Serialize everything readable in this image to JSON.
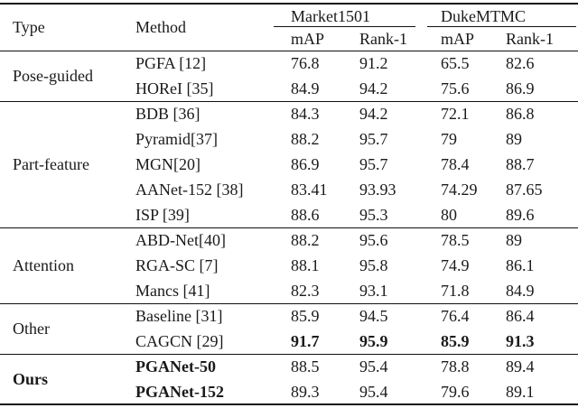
{
  "table": {
    "columns": {
      "type": "Type",
      "method": "Method"
    },
    "groups": [
      {
        "label": "Market1501",
        "sub": [
          "mAP",
          "Rank-1"
        ]
      },
      {
        "label": "DukeMTMC",
        "sub": [
          "mAP",
          "Rank-1"
        ]
      }
    ],
    "sections": [
      {
        "type": "Pose-guided",
        "bold": false,
        "rows": [
          {
            "method": "PGFA [12]",
            "values": [
              "76.8",
              "91.2",
              "65.5",
              "82.6"
            ]
          },
          {
            "method": "HOReI [35]",
            "values": [
              "84.9",
              "94.2",
              "75.6",
              "86.9"
            ]
          }
        ]
      },
      {
        "type": "Part-feature",
        "bold": false,
        "rows": [
          {
            "method": "BDB [36]",
            "values": [
              "84.3",
              "94.2",
              "72.1",
              "86.8"
            ]
          },
          {
            "method": "Pyramid[37]",
            "values": [
              "88.2",
              "95.7",
              "79",
              "89"
            ]
          },
          {
            "method": "MGN[20]",
            "values": [
              "86.9",
              "95.7",
              "78.4",
              "88.7"
            ]
          },
          {
            "method": "AANet-152 [38]",
            "values": [
              "83.41",
              "93.93",
              "74.29",
              "87.65"
            ]
          },
          {
            "method": "ISP [39]",
            "values": [
              "88.6",
              "95.3",
              "80",
              "89.6"
            ]
          }
        ]
      },
      {
        "type": "Attention",
        "bold": false,
        "rows": [
          {
            "method": "ABD-Net[40]",
            "values": [
              "88.2",
              "95.6",
              "78.5",
              "89"
            ]
          },
          {
            "method": "RGA-SC [7]",
            "values": [
              "88.1",
              "95.8",
              "74.9",
              "86.1"
            ]
          },
          {
            "method": "Mancs [41]",
            "values": [
              "82.3",
              "93.1",
              "71.8",
              "84.9"
            ]
          }
        ]
      },
      {
        "type": "Other",
        "bold": false,
        "rows": [
          {
            "method": "Baseline [31]",
            "values": [
              "85.9",
              "94.5",
              "76.4",
              "86.4"
            ]
          },
          {
            "method": "CAGCN [29]",
            "values": [
              "91.7",
              "95.9",
              "85.9",
              "91.3"
            ],
            "values_bold": true
          }
        ]
      },
      {
        "type": "Ours",
        "bold": true,
        "rows": [
          {
            "method": "PGANet-50",
            "method_bold": true,
            "values": [
              "88.5",
              "95.4",
              "78.8",
              "89.4"
            ]
          },
          {
            "method": "PGANet-152",
            "method_bold": true,
            "values": [
              "89.3",
              "95.4",
              "79.6",
              "89.1"
            ]
          }
        ]
      }
    ]
  },
  "colors": {
    "text": "#1a1a1a",
    "rule": "#111111",
    "background": "#ffffff"
  }
}
